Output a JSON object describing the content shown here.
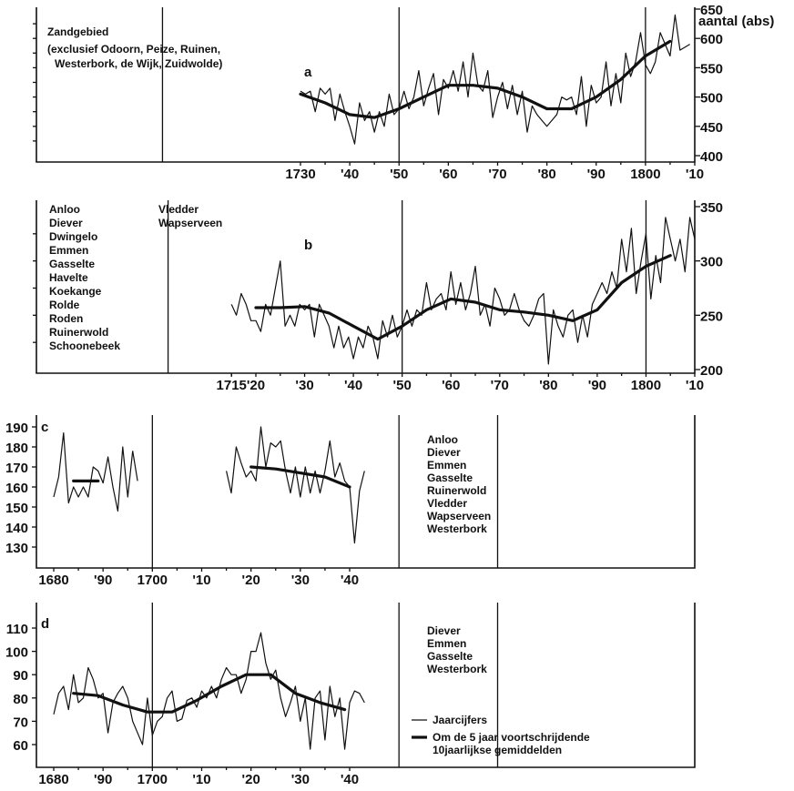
{
  "chart_data": [
    {
      "id": "a",
      "type": "line",
      "letter": "a",
      "region_text": [
        "Zandgebied",
        "(exclusief Odoorn, Peize, Ruinen,",
        "Westerbork, de Wijk, Zuidwolde)"
      ],
      "ylabel": "aantal (abs)",
      "ylim": [
        400,
        650
      ],
      "yticks": [
        400,
        450,
        500,
        550,
        600,
        650
      ],
      "xlim": [
        1702,
        1810
      ],
      "xticks": [
        1730,
        1740,
        1750,
        1760,
        1770,
        1780,
        1790,
        1800,
        1810
      ],
      "xticklabels": [
        "1730",
        "'40",
        "'50",
        "'60",
        "'70",
        "'80",
        "'90",
        "1800",
        "'10"
      ],
      "vlines": [
        1702,
        1750,
        1800
      ],
      "series": [
        {
          "kind": "annual",
          "x": [
            1730,
            1731,
            1732,
            1733,
            1734,
            1735,
            1736,
            1737,
            1738,
            1739,
            1740,
            1741,
            1742,
            1743,
            1744,
            1745,
            1746,
            1747,
            1748,
            1749,
            1750,
            1751,
            1752,
            1753,
            1754,
            1755,
            1756,
            1757,
            1758,
            1759,
            1760,
            1761,
            1762,
            1763,
            1764,
            1765,
            1766,
            1767,
            1768,
            1769,
            1770,
            1771,
            1772,
            1773,
            1774,
            1775,
            1776,
            1777,
            1778,
            1779,
            1780,
            1781,
            1782,
            1783,
            1784,
            1785,
            1786,
            1787,
            1788,
            1789,
            1790,
            1791,
            1792,
            1793,
            1794,
            1795,
            1796,
            1797,
            1798,
            1799,
            1800,
            1801,
            1802,
            1803,
            1804,
            1805,
            1806,
            1807,
            1808,
            1809
          ],
          "y": [
            510,
            505,
            510,
            475,
            515,
            505,
            515,
            460,
            505,
            475,
            450,
            420,
            490,
            460,
            475,
            440,
            475,
            450,
            505,
            470,
            480,
            510,
            480,
            500,
            545,
            485,
            515,
            540,
            470,
            530,
            515,
            545,
            510,
            560,
            500,
            575,
            520,
            510,
            545,
            465,
            500,
            525,
            480,
            520,
            470,
            510,
            440,
            485,
            470,
            460,
            450,
            460,
            470,
            500,
            495,
            500,
            470,
            535,
            450,
            520,
            490,
            500,
            560,
            485,
            540,
            490,
            575,
            535,
            560,
            610,
            555,
            540,
            560,
            610,
            590,
            570,
            640,
            580,
            585,
            590
          ]
        },
        {
          "kind": "avg",
          "x": [
            1730,
            1735,
            1740,
            1745,
            1750,
            1755,
            1760,
            1765,
            1770,
            1775,
            1780,
            1785,
            1790,
            1795,
            1800,
            1805
          ],
          "y": [
            505,
            490,
            470,
            465,
            480,
            500,
            520,
            520,
            515,
            500,
            480,
            480,
            500,
            530,
            570,
            595
          ]
        }
      ]
    },
    {
      "id": "b",
      "type": "line",
      "letter": "b",
      "region_text_col1": [
        "Anloo",
        "Diever",
        "Dwingelo",
        "Emmen",
        "Gasselte",
        "Havelte",
        "Koekange",
        "Rolde",
        "Roden",
        "Ruinerwold",
        "Schoonebeek"
      ],
      "region_text_col2": [
        "Vledder",
        "Wapserveen"
      ],
      "ylim": [
        200,
        350
      ],
      "yticks": [
        200,
        250,
        300,
        350
      ],
      "xlim": [
        1702,
        1810
      ],
      "xticks": [
        1715,
        1720,
        1730,
        1740,
        1750,
        1760,
        1770,
        1780,
        1790,
        1800,
        1810
      ],
      "xticklabels": [
        "1715",
        "'20",
        "'30",
        "'40",
        "'50",
        "'60",
        "'70",
        "'80",
        "'90",
        "1800",
        "'10"
      ],
      "vlines": [
        1702,
        1750,
        1800
      ],
      "series": [
        {
          "kind": "annual",
          "x": [
            1715,
            1716,
            1717,
            1718,
            1719,
            1720,
            1721,
            1722,
            1723,
            1724,
            1725,
            1726,
            1727,
            1728,
            1729,
            1730,
            1731,
            1732,
            1733,
            1734,
            1735,
            1736,
            1737,
            1738,
            1739,
            1740,
            1741,
            1742,
            1743,
            1744,
            1745,
            1746,
            1747,
            1748,
            1749,
            1750,
            1751,
            1752,
            1753,
            1754,
            1755,
            1756,
            1757,
            1758,
            1759,
            1760,
            1761,
            1762,
            1763,
            1764,
            1765,
            1766,
            1767,
            1768,
            1769,
            1770,
            1771,
            1772,
            1773,
            1774,
            1775,
            1776,
            1777,
            1778,
            1779,
            1780,
            1781,
            1782,
            1783,
            1784,
            1785,
            1786,
            1787,
            1788,
            1789,
            1790,
            1791,
            1792,
            1793,
            1794,
            1795,
            1796,
            1797,
            1798,
            1799,
            1800,
            1801,
            1802,
            1803,
            1804,
            1805,
            1806,
            1807,
            1808,
            1809,
            1810
          ],
          "y": [
            260,
            250,
            270,
            260,
            245,
            245,
            235,
            260,
            250,
            275,
            300,
            240,
            250,
            240,
            260,
            255,
            260,
            230,
            260,
            250,
            240,
            220,
            240,
            220,
            230,
            210,
            230,
            220,
            240,
            230,
            210,
            245,
            230,
            250,
            230,
            240,
            255,
            240,
            255,
            250,
            280,
            255,
            265,
            270,
            255,
            290,
            260,
            280,
            255,
            270,
            295,
            250,
            260,
            240,
            275,
            265,
            250,
            255,
            270,
            255,
            245,
            240,
            250,
            265,
            270,
            205,
            255,
            240,
            230,
            250,
            255,
            225,
            250,
            230,
            260,
            270,
            280,
            270,
            290,
            275,
            320,
            290,
            330,
            270,
            300,
            325,
            265,
            305,
            280,
            340,
            320,
            300,
            320,
            290,
            340,
            320
          ]
        },
        {
          "kind": "avg",
          "x": [
            1720,
            1725,
            1730,
            1735,
            1740,
            1745,
            1750,
            1755,
            1760,
            1765,
            1770,
            1775,
            1780,
            1785,
            1790,
            1795,
            1800,
            1805
          ],
          "y": [
            257,
            257,
            258,
            252,
            240,
            228,
            240,
            255,
            265,
            262,
            255,
            253,
            250,
            245,
            255,
            280,
            295,
            305
          ]
        }
      ]
    },
    {
      "id": "c",
      "type": "line",
      "letter": "c",
      "region_text": [
        "Anloo",
        "Diever",
        "Emmen",
        "Gasselte",
        "Ruinerwold",
        "Vledder",
        "Wapserveen",
        "Westerbork"
      ],
      "ylim": [
        120,
        200
      ],
      "yticks": [
        130,
        140,
        150,
        160,
        170,
        180,
        190
      ],
      "xlim": [
        1677,
        1776
      ],
      "xticks": [
        1680,
        1690,
        1700,
        1710,
        1720,
        1730,
        1740
      ],
      "xticklabels": [
        "1680",
        "'90",
        "1700",
        "'10",
        "'20",
        "'30",
        "'40"
      ],
      "vlines": [
        1700,
        1750,
        1770
      ],
      "series": [
        {
          "kind": "annual",
          "x": [
            1680,
            1681,
            1682,
            1683,
            1684,
            1685,
            1686,
            1687,
            1688,
            1689,
            1690,
            1691,
            1692,
            1693,
            1694,
            1695,
            1696
          ],
          "y": [
            155,
            165,
            187,
            152,
            160,
            155,
            160,
            155,
            170,
            168,
            162,
            175,
            160,
            148,
            180,
            155,
            178
          ]
        },
        {
          "kind": "annual",
          "x": [
            1696,
            1697
          ],
          "y": [
            178,
            163
          ]
        },
        {
          "kind": "annual",
          "x": [
            1715,
            1716,
            1717,
            1718,
            1719,
            1720,
            1721,
            1722,
            1723,
            1724,
            1725,
            1726,
            1727,
            1728,
            1729,
            1730,
            1731,
            1732,
            1733,
            1734,
            1735,
            1736,
            1737,
            1738,
            1739,
            1740,
            1741,
            1742,
            1743
          ],
          "y": [
            168,
            157,
            180,
            172,
            165,
            168,
            163,
            190,
            170,
            182,
            180,
            183,
            168,
            157,
            170,
            155,
            170,
            157,
            168,
            157,
            168,
            183,
            165,
            172,
            163,
            160,
            132,
            158,
            168
          ]
        },
        {
          "kind": "avg",
          "x": [
            1684,
            1689
          ],
          "y": [
            163,
            163
          ]
        },
        {
          "kind": "avg",
          "x": [
            1720,
            1725,
            1730,
            1735,
            1740
          ],
          "y": [
            170,
            169,
            167,
            165,
            160
          ]
        }
      ]
    },
    {
      "id": "d",
      "type": "line",
      "letter": "d",
      "region_text": [
        "Diever",
        "Emmen",
        "Gasselte",
        "Westerbork"
      ],
      "ylim": [
        50,
        115
      ],
      "yticks": [
        60,
        70,
        80,
        90,
        100,
        110
      ],
      "xlim": [
        1677,
        1776
      ],
      "xticks": [
        1680,
        1690,
        1700,
        1710,
        1720,
        1730,
        1740
      ],
      "xticklabels": [
        "1680",
        "'90",
        "1700",
        "'10",
        "'20",
        "'30",
        "'40"
      ],
      "vlines": [
        1700,
        1750,
        1770
      ],
      "series": [
        {
          "kind": "annual",
          "x": [
            1680,
            1681,
            1682,
            1683,
            1684,
            1685,
            1686,
            1687,
            1688,
            1689,
            1690,
            1691,
            1692,
            1693,
            1694,
            1695,
            1696,
            1697,
            1698,
            1699,
            1700,
            1701,
            1702,
            1703,
            1704,
            1705,
            1706,
            1707,
            1708,
            1709,
            1710,
            1711,
            1712,
            1713,
            1714,
            1715,
            1716,
            1717,
            1718,
            1719,
            1720,
            1721,
            1722,
            1723,
            1724,
            1725,
            1726,
            1727,
            1728,
            1729,
            1730,
            1731,
            1732,
            1733,
            1734,
            1735,
            1736,
            1737,
            1738,
            1739,
            1740,
            1741,
            1742,
            1743
          ],
          "y": [
            73,
            82,
            85,
            75,
            90,
            78,
            80,
            93,
            88,
            80,
            82,
            65,
            78,
            82,
            85,
            80,
            70,
            65,
            60,
            80,
            64,
            70,
            72,
            80,
            83,
            70,
            71,
            79,
            80,
            76,
            83,
            80,
            85,
            80,
            88,
            93,
            90,
            90,
            82,
            88,
            100,
            100,
            108,
            95,
            88,
            92,
            80,
            72,
            78,
            85,
            70,
            80,
            58,
            80,
            83,
            62,
            85,
            72,
            80,
            58,
            78,
            83,
            82,
            78
          ]
        },
        {
          "kind": "avg",
          "x": [
            1684,
            1689,
            1694,
            1699,
            1704,
            1709,
            1714,
            1719,
            1724,
            1729,
            1734,
            1739
          ],
          "y": [
            82,
            81,
            77,
            74,
            74,
            79,
            85,
            90,
            90,
            82,
            78,
            75
          ]
        }
      ],
      "legend": {
        "annual": "Jaarcijfers",
        "avg_line1": "Om de 5 jaar voortschrijdende",
        "avg_line2": "10jaarlijkse gemiddelden"
      }
    }
  ]
}
